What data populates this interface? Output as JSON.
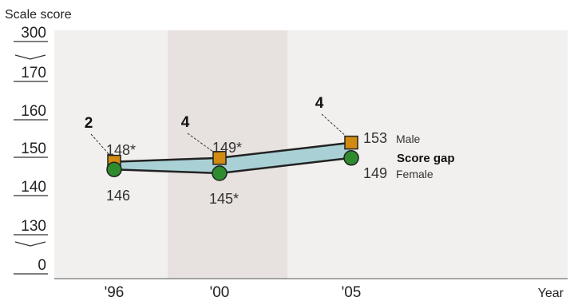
{
  "chart_data": {
    "type": "line",
    "ylabel": "Scale score",
    "xlabel": "Year",
    "x": [
      "'96",
      "'00",
      "'05"
    ],
    "y_ticks": [
      "300",
      "170",
      "160",
      "150",
      "140",
      "130",
      "0"
    ],
    "ylim": [
      130,
      170
    ],
    "axis_breaks": [
      "top",
      "bottom"
    ],
    "highlight_year": "'00",
    "series": [
      {
        "name": "Male",
        "marker": "square",
        "color": "#d08b10",
        "values": [
          148,
          149,
          153
        ],
        "labels": [
          "148*",
          "149*",
          "153"
        ]
      },
      {
        "name": "Female",
        "marker": "circle",
        "color": "#2e8b2e",
        "values": [
          146,
          145,
          149
        ],
        "labels": [
          "146",
          "145*",
          "149"
        ]
      }
    ],
    "gap": {
      "name": "Score gap",
      "values": [
        "2",
        "4",
        "4"
      ],
      "fill": "#a9d1d5"
    },
    "colors": {
      "plot_background": "#f2f0ee",
      "highlight_band": "#e7e2df"
    }
  }
}
